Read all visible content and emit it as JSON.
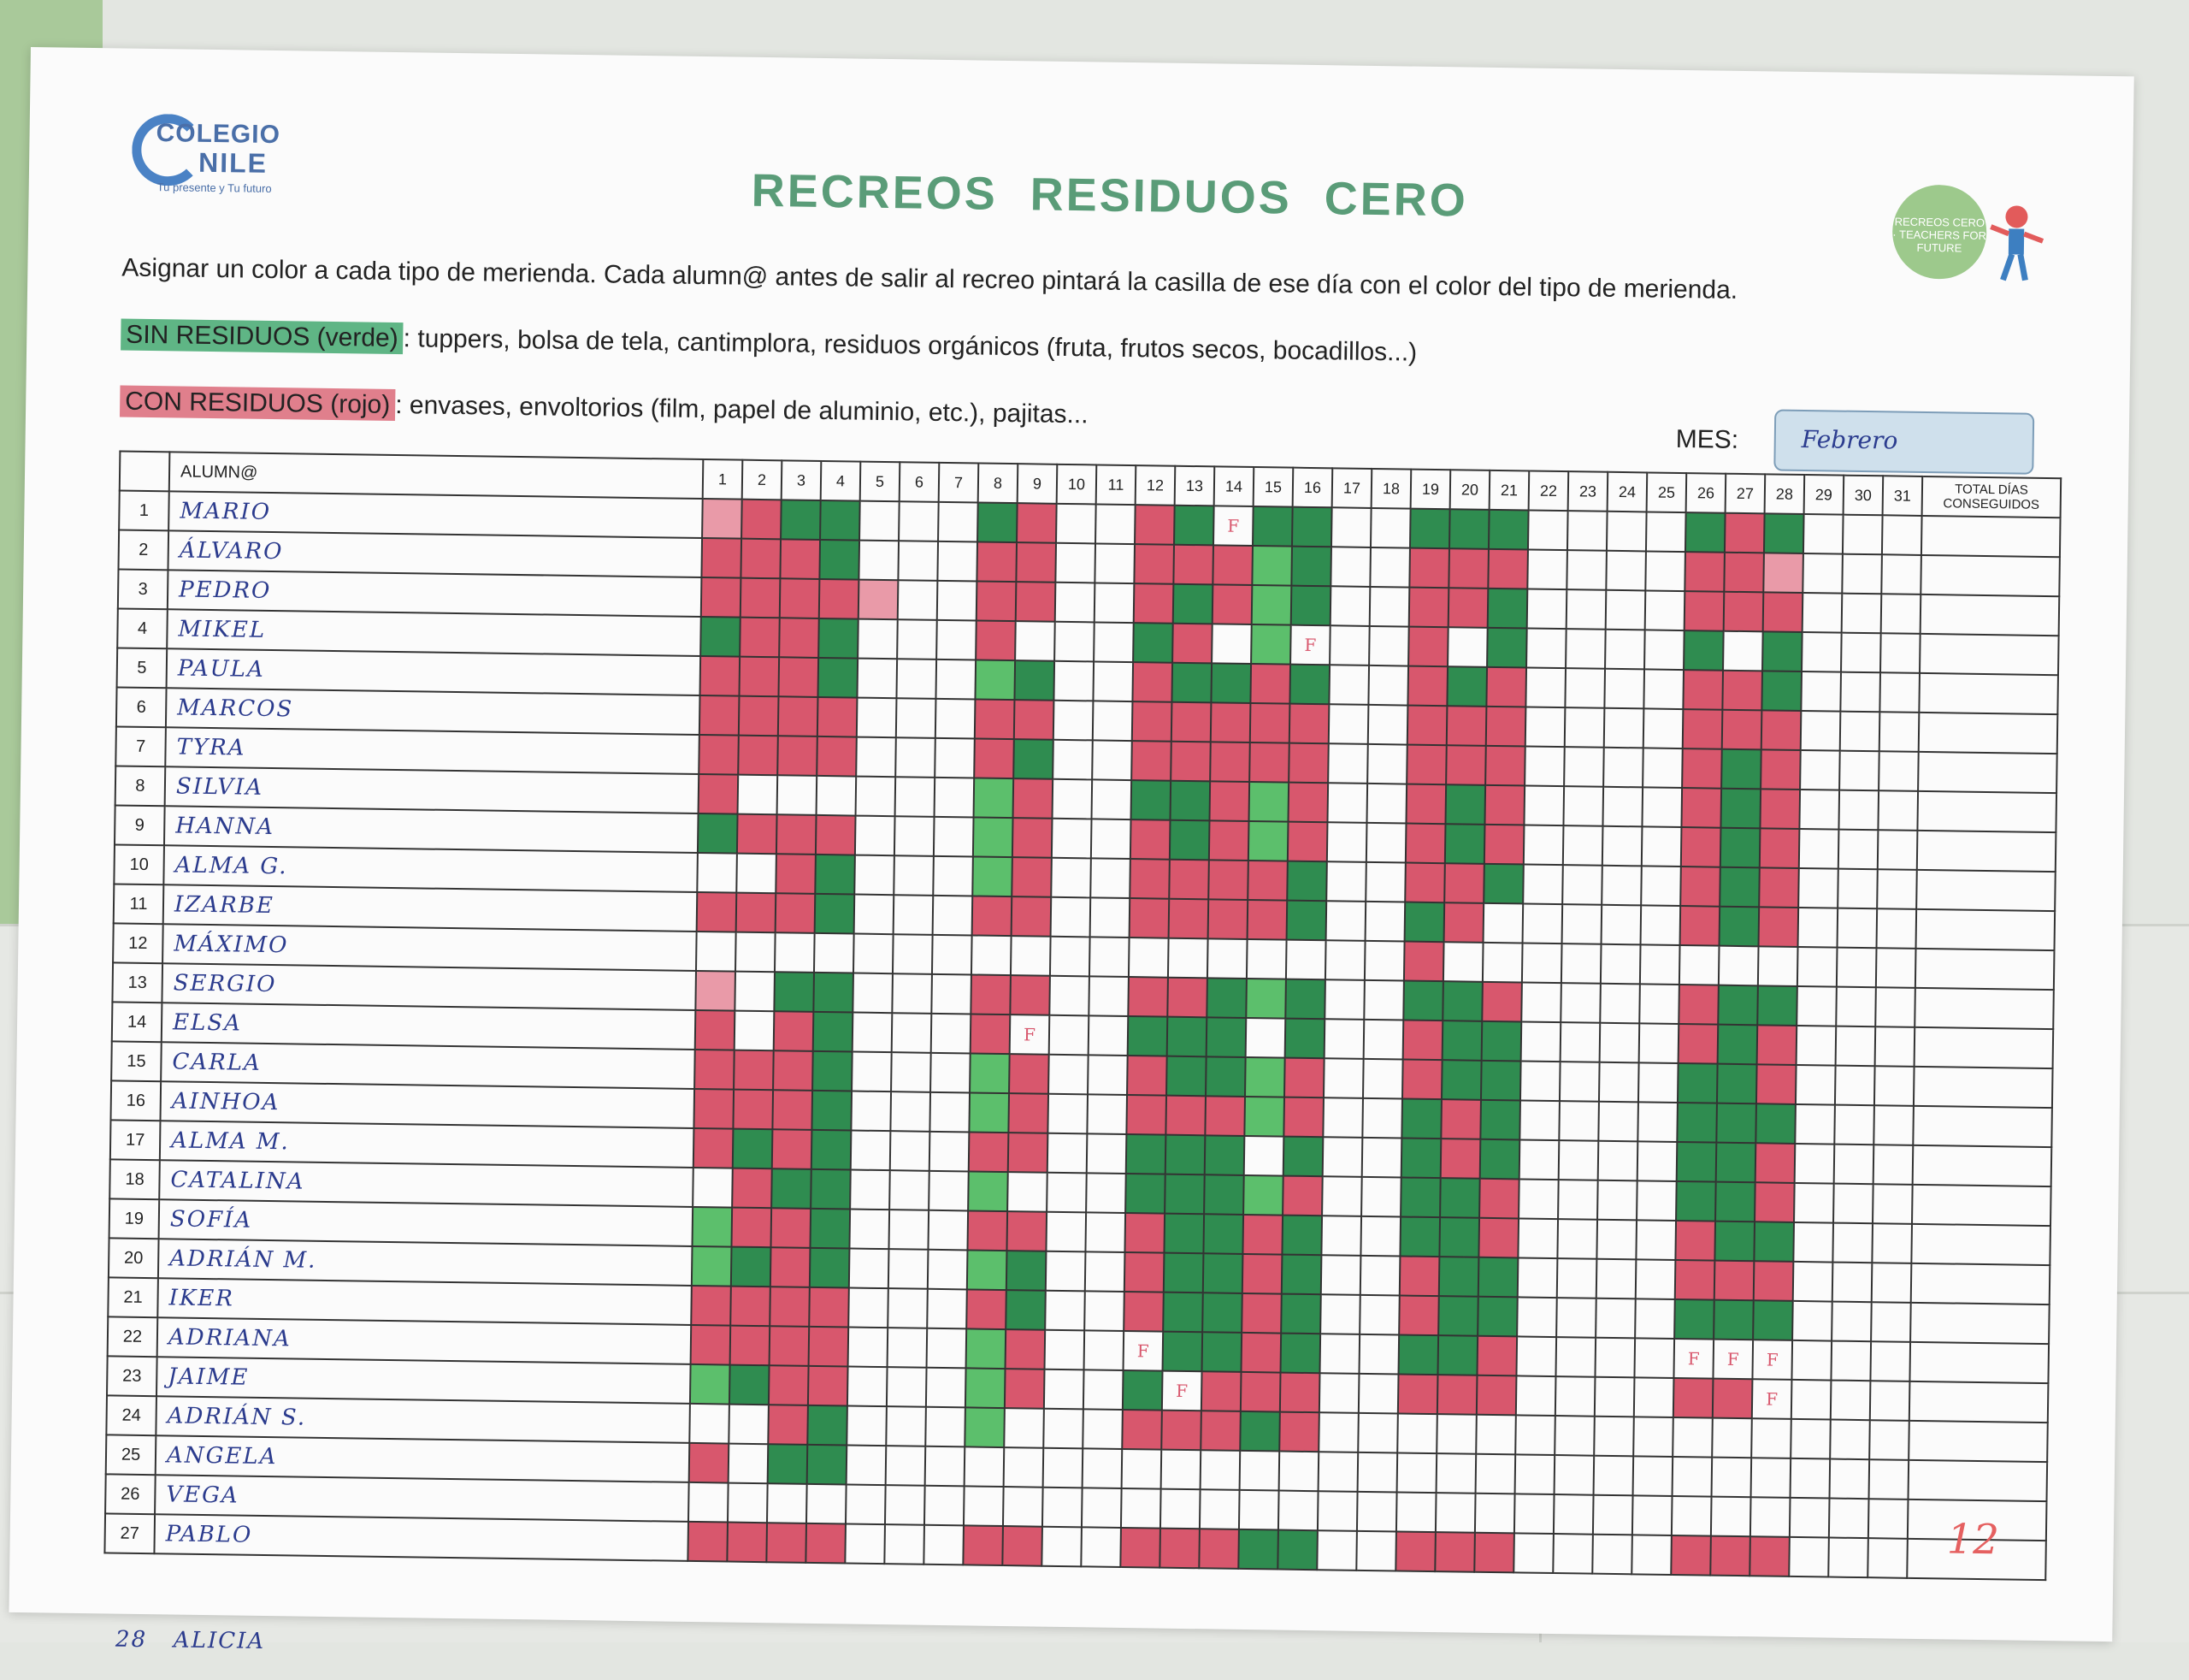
{
  "school": {
    "name_line1": "COLEGIO",
    "name_line2": "NILE",
    "tagline": "Tu presente y Tu futuro"
  },
  "title": "RECREOS RESIDUOS CERO",
  "badge": {
    "text": "RECREOS CERO · TEACHERS FOR FUTURE"
  },
  "instructions": "Asignar un color a cada tipo de merienda. Cada alumn@ antes de salir al recreo pintará la casilla de ese día con el color del tipo de merienda.",
  "legend": {
    "green_label": "SIN RESIDUOS (verde)",
    "green_text": ": tuppers, bolsa de tela, cantimplora, residuos orgánicos (fruta, frutos secos, bocadillos...)",
    "red_label": "CON RESIDUOS (rojo)",
    "red_text": ": envases, envoltorios (film, papel de aluminio, etc.), pajitas..."
  },
  "month": {
    "label": "MES:",
    "value": "Febrero"
  },
  "table": {
    "name_header": "ALUMN@",
    "total_header": "TOTAL DÍAS CONSEGUIDOS",
    "days": [
      "1",
      "2",
      "3",
      "4",
      "5",
      "6",
      "7",
      "8",
      "9",
      "10",
      "11",
      "12",
      "13",
      "14",
      "15",
      "16",
      "17",
      "18",
      "19",
      "20",
      "21",
      "22",
      "23",
      "24",
      "25",
      "26",
      "27",
      "28",
      "29",
      "30",
      "31"
    ],
    "students": [
      {
        "n": "1",
        "name": "MARIO",
        "marks": "prgg...gr..rgfgg..ggg....grg..."
      },
      {
        "n": "2",
        "name": "ÁLVARO",
        "marks": "rrrg...rr..rrrlg..rrr....rrp..."
      },
      {
        "n": "3",
        "name": "PEDRO",
        "marks": "rrrrp..rr..rgrlg..rrg....rrr..."
      },
      {
        "n": "4",
        "name": "MIKEL",
        "marks": "grrg...r...gr.lf..r.g....g.g..."
      },
      {
        "n": "5",
        "name": "PAULA",
        "marks": "rrrg...lg..rggrg..rgr....rrg..."
      },
      {
        "n": "6",
        "name": "MARCOS",
        "marks": "rrrr...rr..rrrrr..rrr....rrr..."
      },
      {
        "n": "7",
        "name": "TYRA",
        "marks": "rrrr...rg..rrrrr..rrr....rgr..."
      },
      {
        "n": "8",
        "name": "SILVIA",
        "marks": "r......lr..ggrlr..rgr....rgr..."
      },
      {
        "n": "9",
        "name": "HANNA",
        "marks": "grrr...lr..rgrlr..rgr....rgr..."
      },
      {
        "n": "10",
        "name": "ALMA G.",
        "marks": "..rg...lr..rrrrg..rrg....rgr..."
      },
      {
        "n": "11",
        "name": "IZARBE",
        "marks": "rrrg...rr..rrrrg..gr.....rgr..."
      },
      {
        "n": "12",
        "name": "MÁXIMO",
        "marks": "..................r............"
      },
      {
        "n": "13",
        "name": "SERGIO",
        "marks": "p.gg...rr..rrglg..ggr....rgg..."
      },
      {
        "n": "14",
        "name": "ELSA",
        "marks": "r.rg...rf..gggng..rgg....rgr..."
      },
      {
        "n": "15",
        "name": "CARLA",
        "marks": "rrrg...lr..rgglr..rgg....ggr..."
      },
      {
        "n": "16",
        "name": "AINHOA",
        "marks": "rrrg...lr..rrrlr..grg....ggg..."
      },
      {
        "n": "17",
        "name": "ALMA M.",
        "marks": "rgrg...rr..gggng..grg....ggr..."
      },
      {
        "n": "18",
        "name": "CATALINA",
        "marks": ".rgg...l...ggglr..ggr....ggr..."
      },
      {
        "n": "19",
        "name": "SOFÍA",
        "marks": "lrrg...rr..rggrg..ggr....rgg..."
      },
      {
        "n": "20",
        "name": "ADRIÁN M.",
        "marks": "lgrg...lg..rggrg..rgg....rrr..."
      },
      {
        "n": "21",
        "name": "IKER",
        "marks": "rrrr...rg..rggrg..rgg....ggg..."
      },
      {
        "n": "22",
        "name": "ADRIANA",
        "marks": "rrrr...lr..fggrg..ggr....fff..."
      },
      {
        "n": "23",
        "name": "JAIME",
        "marks": "lgrr...lr..gfrrr..rrr....rrf..."
      },
      {
        "n": "24",
        "name": "ADRIÁN S.",
        "marks": "..rg...l...rrrgr..............."
      },
      {
        "n": "25",
        "name": "ANGELA",
        "marks": "r.gg...........................",
        "extra": ""
      },
      {
        "n": "26",
        "name": "VEGA",
        "marks": "...............................",
        "extra": ""
      },
      {
        "n": "27",
        "name": "PABLO",
        "marks": "rrrr...rr..rrrgg..rrr....rrr..."
      }
    ],
    "after": {
      "n": "28",
      "name": "ALICIA"
    }
  },
  "corner_mark": "12"
}
